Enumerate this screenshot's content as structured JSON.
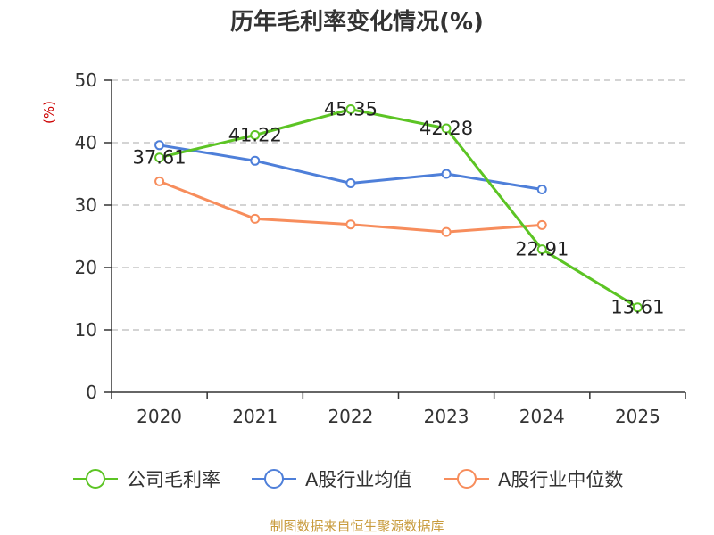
{
  "chart_data": {
    "type": "line",
    "title": "历年毛利率变化情况(%)",
    "ylabel": "(%)",
    "xlabel": "",
    "categories": [
      "2020",
      "2021",
      "2022",
      "2023",
      "2024",
      "2025"
    ],
    "ylim": [
      0,
      50
    ],
    "yticks": [
      0,
      10,
      20,
      30,
      40,
      50
    ],
    "grid": true,
    "legend_position": "bottom",
    "series": [
      {
        "name": "公司毛利率",
        "color": "#5cc424",
        "values": [
          37.61,
          41.22,
          45.35,
          42.28,
          22.91,
          13.61
        ],
        "data_labels": [
          "37.61",
          "41.22",
          "45.35",
          "42.28",
          "22.91",
          "13.61"
        ]
      },
      {
        "name": "A股行业均值",
        "color": "#4e7fd9",
        "values": [
          39.6,
          37.1,
          33.5,
          35.0,
          32.5,
          null
        ]
      },
      {
        "name": "A股行业中位数",
        "color": "#f78d5c",
        "values": [
          33.8,
          27.8,
          26.9,
          25.7,
          26.8,
          null
        ]
      }
    ]
  },
  "footer": {
    "source_text": "制图数据来自恒生聚源数据库",
    "source_color": "#c89b3c"
  },
  "colors": {
    "axis": "#333333",
    "grid": "#bbbbbb",
    "ylabel": "#cc0000"
  }
}
